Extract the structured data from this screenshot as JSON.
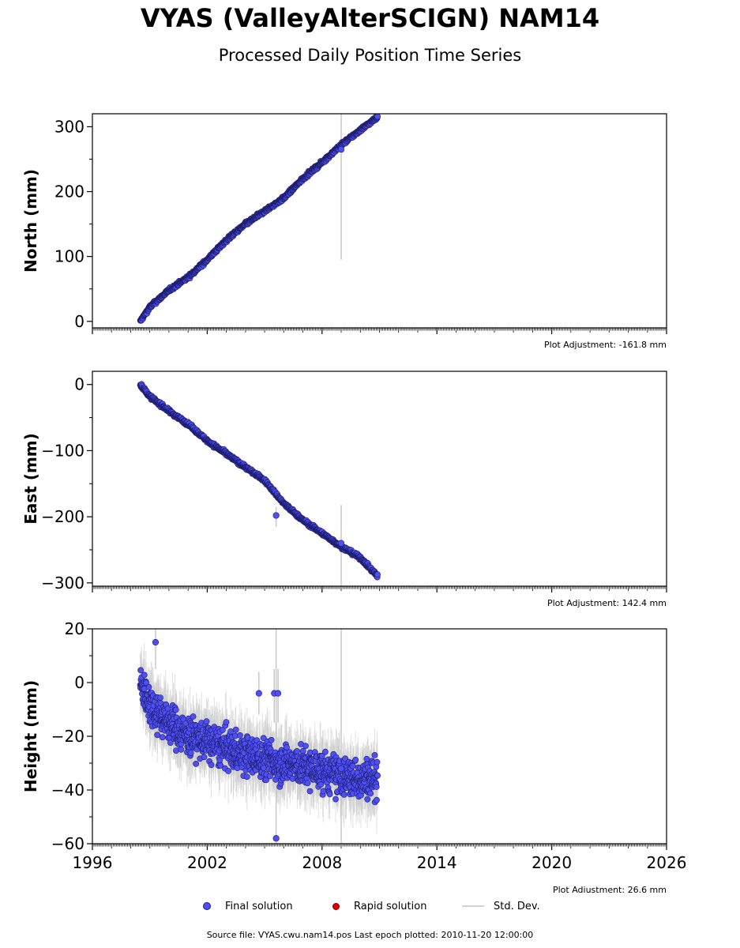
{
  "title": "VYAS (ValleyAlterSCIGN) NAM14",
  "subtitle": "Processed Daily Position Time Series",
  "footer": "Source file: VYAS.cwu.nam14.pos  Last epoch plotted: 2010-11-20 12:00:00",
  "legend": {
    "final": "Final solution",
    "rapid": "Rapid solution",
    "std": "Std. Dev."
  },
  "colors": {
    "final_fill": "#4f4ff7",
    "final_edge": "#1d1d6b",
    "rapid_fill": "#e00000",
    "std_dev": "#c8c8c8"
  },
  "chart_data": [
    {
      "type": "scatter",
      "component": "north",
      "ylabel": "North (mm)",
      "ylim": [
        -10,
        320
      ],
      "yticks": [
        0,
        100,
        200,
        300
      ],
      "xlim": [
        1996,
        2026
      ],
      "xticks": [
        1996,
        2002,
        2008,
        2014,
        2020,
        2026
      ],
      "adjustment": "Plot Adjustment: -161.8 mm",
      "series": [
        {
          "name": "Final solution",
          "x": [
            1998.5,
            1999,
            2000,
            2001,
            2002,
            2003,
            2004,
            2005,
            2006,
            2007,
            2008,
            2009,
            2010,
            2010.9
          ],
          "values": [
            0,
            22,
            48,
            68,
            95,
            125,
            150,
            170,
            190,
            220,
            245,
            272,
            295,
            315
          ]
        }
      ],
      "outliers": [
        {
          "x": 2009.0,
          "value": 265,
          "std_low": 95,
          "std_high": 320
        }
      ],
      "noise": 2.5
    },
    {
      "type": "scatter",
      "component": "east",
      "ylabel": "East (mm)",
      "ylim": [
        -305,
        20
      ],
      "yticks": [
        -300,
        -200,
        -100,
        0
      ],
      "xlim": [
        1996,
        2026
      ],
      "xticks": [
        1996,
        2002,
        2008,
        2014,
        2020,
        2026
      ],
      "adjustment": "Plot Adjustment: 142.4 mm",
      "series": [
        {
          "name": "Final solution",
          "x": [
            1998.5,
            1999,
            2000,
            2001,
            2002,
            2003,
            2004,
            2005,
            2006,
            2007,
            2008,
            2009,
            2010,
            2010.9
          ],
          "values": [
            0,
            -18,
            -40,
            -60,
            -85,
            -105,
            -125,
            -145,
            -180,
            -205,
            -225,
            -245,
            -262,
            -290
          ]
        }
      ],
      "outliers": [
        {
          "x": 2005.6,
          "value": -198,
          "std_low": -215,
          "std_high": -185
        },
        {
          "x": 2009.0,
          "value": -240,
          "std_low": -305,
          "std_high": -182
        }
      ],
      "noise": 2.5
    },
    {
      "type": "scatter",
      "component": "height",
      "ylabel": "Height (mm)",
      "ylim": [
        -60,
        20
      ],
      "yticks": [
        -60,
        -40,
        -20,
        0,
        20
      ],
      "xlim": [
        1996,
        2026
      ],
      "xticks": [
        1996,
        2002,
        2008,
        2014,
        2020,
        2026
      ],
      "adjustment": "Plot Adjustment: 26.6 mm",
      "series": [
        {
          "name": "Final solution",
          "x": [
            1998.5,
            1999,
            2000,
            2001,
            2002,
            2004,
            2006,
            2008,
            2009,
            2010,
            2010.9
          ],
          "values": [
            0,
            -8,
            -15,
            -20,
            -22,
            -27,
            -30,
            -33,
            -35,
            -36,
            -35
          ]
        }
      ],
      "outliers": [
        {
          "x": 2005.6,
          "value": -58,
          "std_low": -60,
          "std_high": 20
        },
        {
          "x": 2009.0,
          "value": -32,
          "std_low": -60,
          "std_high": 20
        },
        {
          "x": 1999.3,
          "value": 15,
          "std_low": 5,
          "std_high": 20
        },
        {
          "x": 2005.5,
          "value": -4,
          "std_low": -15,
          "std_high": 5
        },
        {
          "x": 2005.7,
          "value": -4,
          "std_low": -15,
          "std_high": 5
        },
        {
          "x": 2004.7,
          "value": -4,
          "std_low": -12,
          "std_high": 4
        }
      ],
      "noise": 6.5
    }
  ]
}
